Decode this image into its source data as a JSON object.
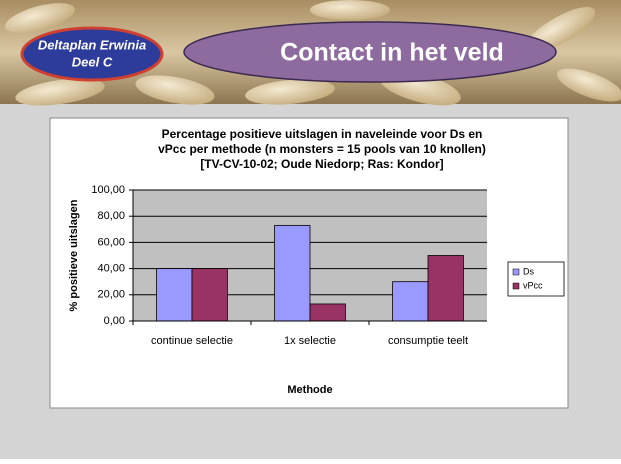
{
  "header": {
    "badge": [
      "Deltaplan Erwinia",
      "Deel C"
    ],
    "title": "Contact in het veld"
  },
  "chart_data": {
    "type": "bar",
    "title": [
      "Percentage positieve uitslagen in naveleinde voor Ds en",
      "vPcc per methode (n monsters = 15 pools van 10 knollen)",
      "[TV-CV-10-02; Oude Niedorp; Ras: Kondor]"
    ],
    "x_label": "Methode",
    "y_label": "% positieve uitslagen",
    "categories": [
      "continue selectie",
      "1x selectie",
      "consumptie teelt"
    ],
    "series": [
      {
        "name": "Ds",
        "color": "#9999ff",
        "values": [
          40,
          73,
          30
        ]
      },
      {
        "name": "vPcc",
        "color": "#993366",
        "values": [
          40,
          13,
          50
        ]
      }
    ],
    "ylim": [
      0,
      100
    ],
    "yticks": [
      {
        "value": 0,
        "label": "0,00"
      },
      {
        "value": 20,
        "label": "20,00"
      },
      {
        "value": 40,
        "label": "40,00"
      },
      {
        "value": 60,
        "label": "60,00"
      },
      {
        "value": 80,
        "label": "80,00"
      },
      {
        "value": 100,
        "label": "100,00"
      }
    ],
    "grid": true,
    "legend": "right"
  }
}
